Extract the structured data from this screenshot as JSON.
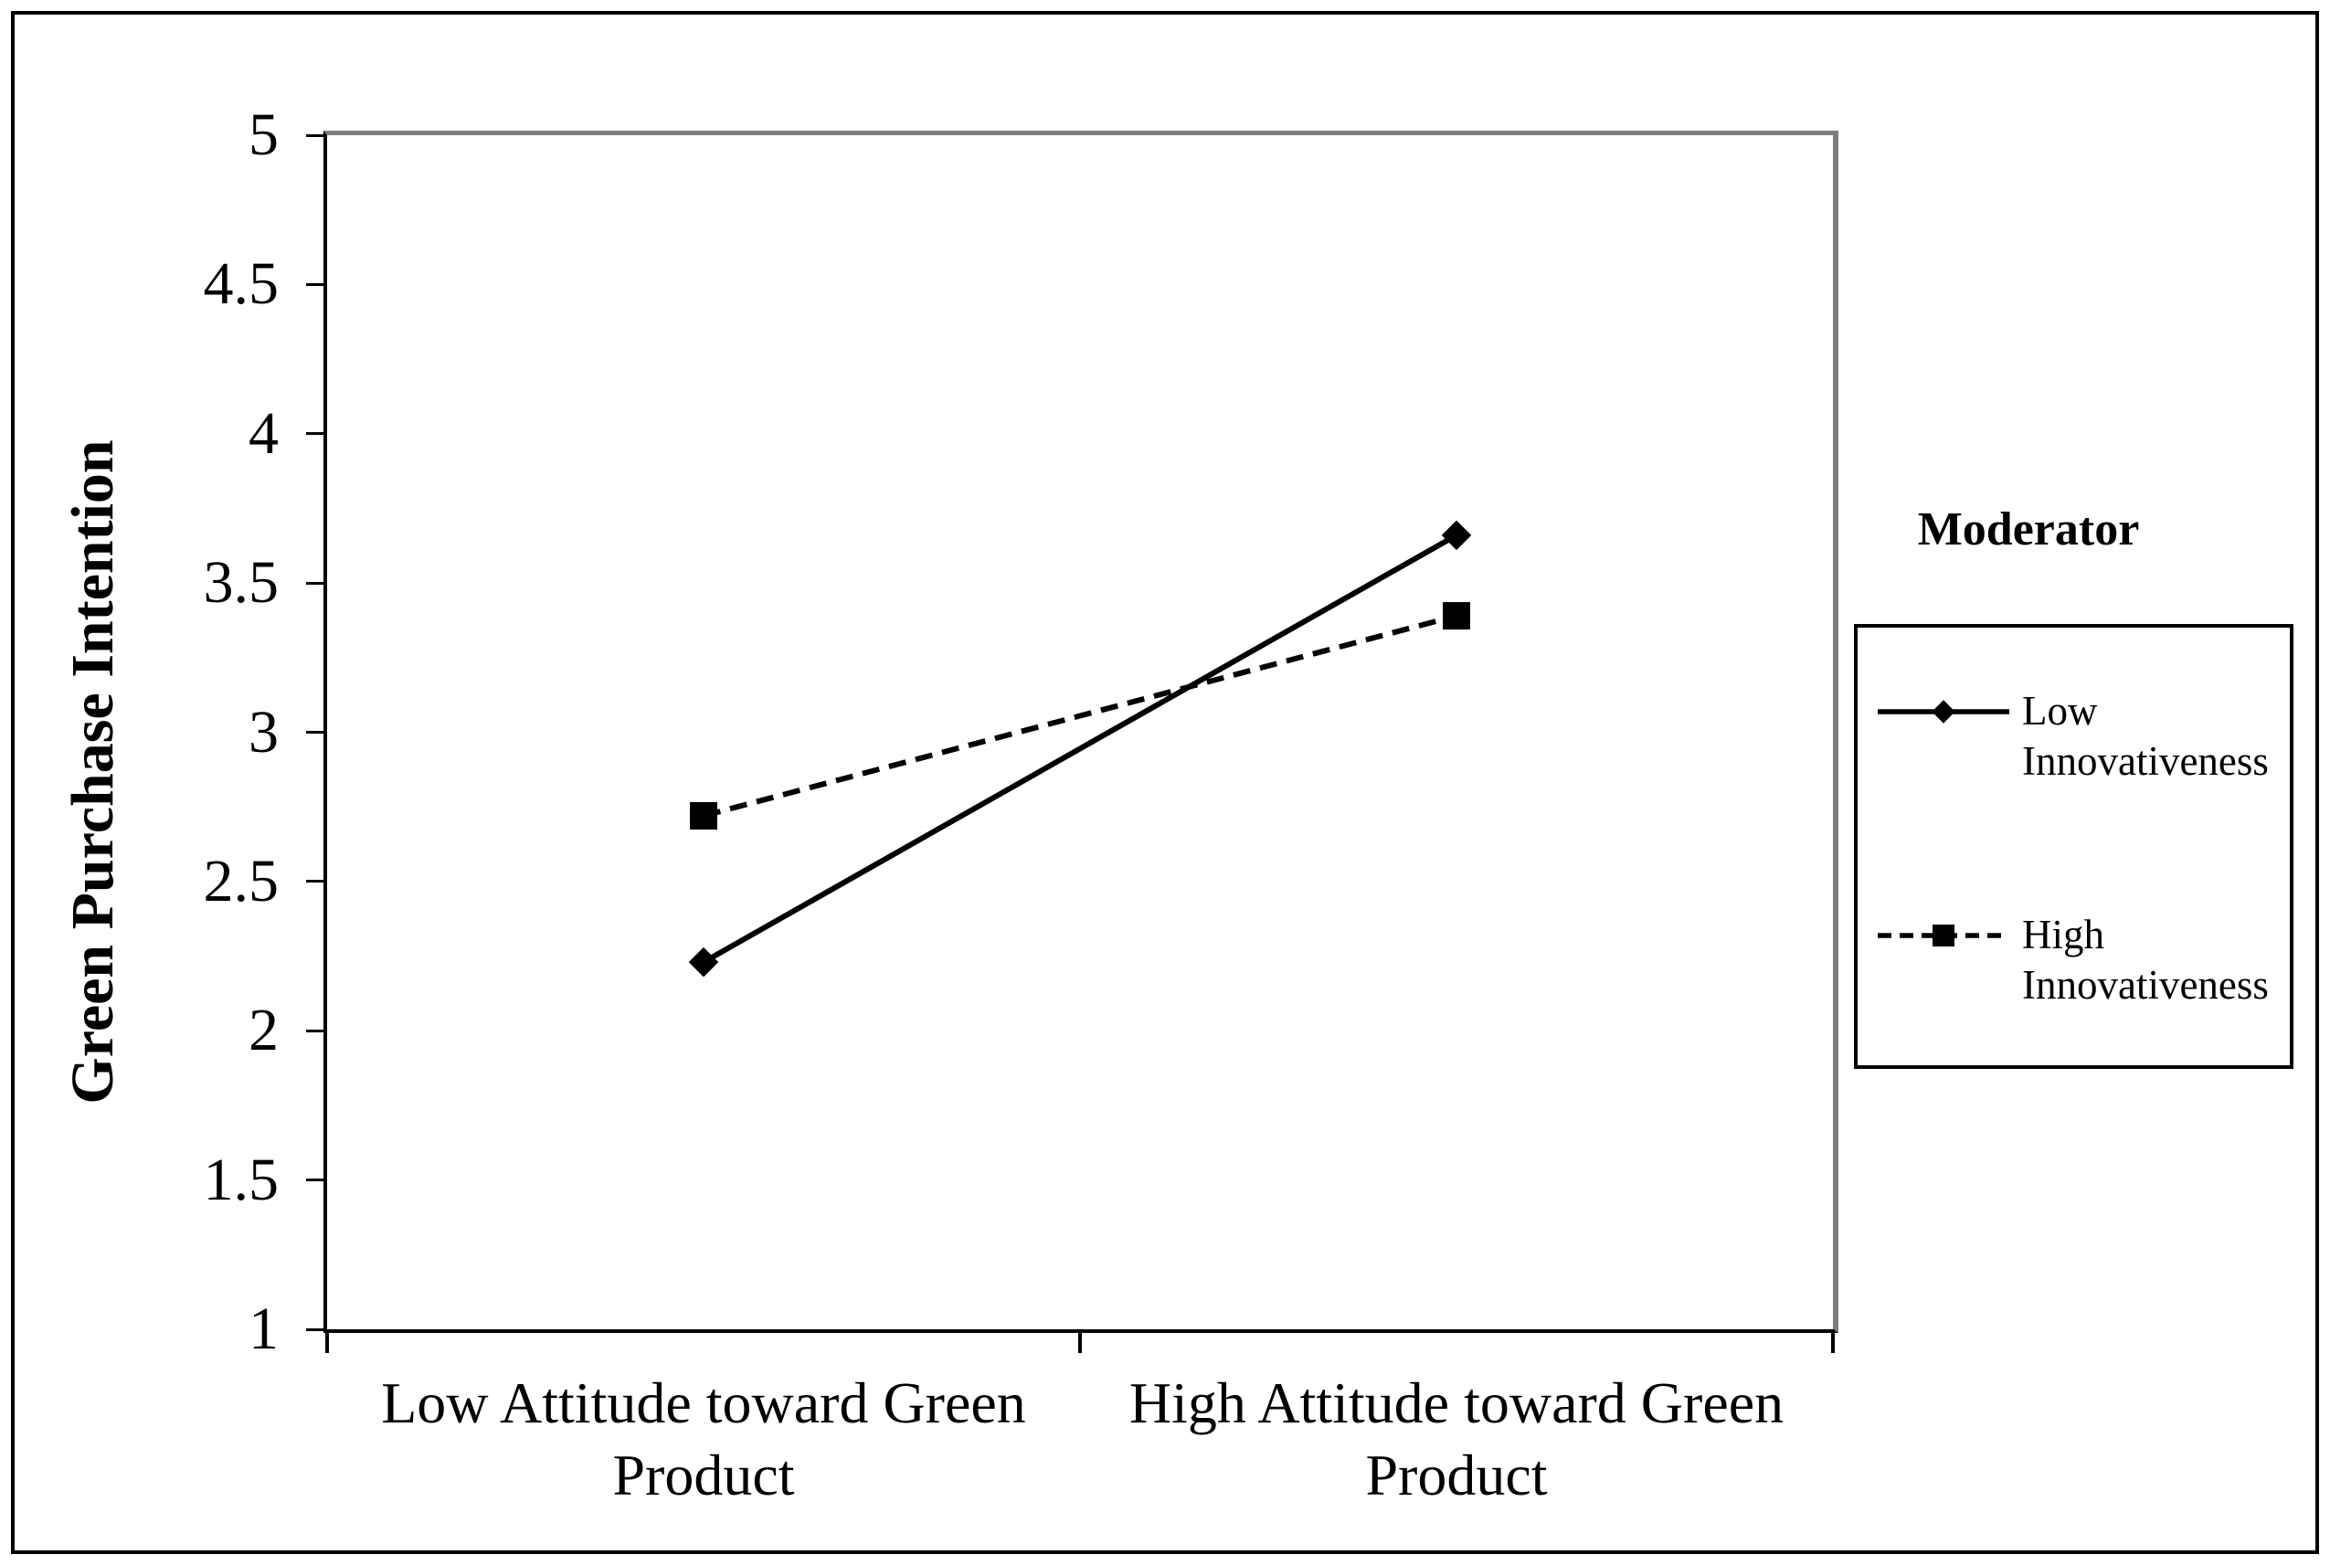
{
  "figure": {
    "background": "#ffffff",
    "border_color": "#000000"
  },
  "chart_data": {
    "type": "line",
    "title": "",
    "xlabel": "",
    "ylabel": "Green Purchase Intention",
    "categories": [
      "Low Attitude toward Green Product",
      "High Attitude toward Green Product"
    ],
    "ylim": [
      1,
      5
    ],
    "yticks": [
      1,
      1.5,
      2,
      2.5,
      3,
      3.5,
      4,
      4.5,
      5
    ],
    "grid": false,
    "series": [
      {
        "name": "Low Innovativeness",
        "values": [
          2.23,
          3.66
        ],
        "line_style": "solid",
        "marker": "diamond",
        "color": "#000000"
      },
      {
        "name": "High Innovativeness",
        "values": [
          2.72,
          3.39
        ],
        "line_style": "dashed",
        "marker": "square",
        "color": "#000000"
      }
    ],
    "legend": {
      "title": "Moderator",
      "position": "right-outside"
    },
    "colors": {
      "line": "#000000",
      "axis": "#000000",
      "plot_border_gray": "#7f7f7f",
      "background": "#ffffff"
    }
  }
}
